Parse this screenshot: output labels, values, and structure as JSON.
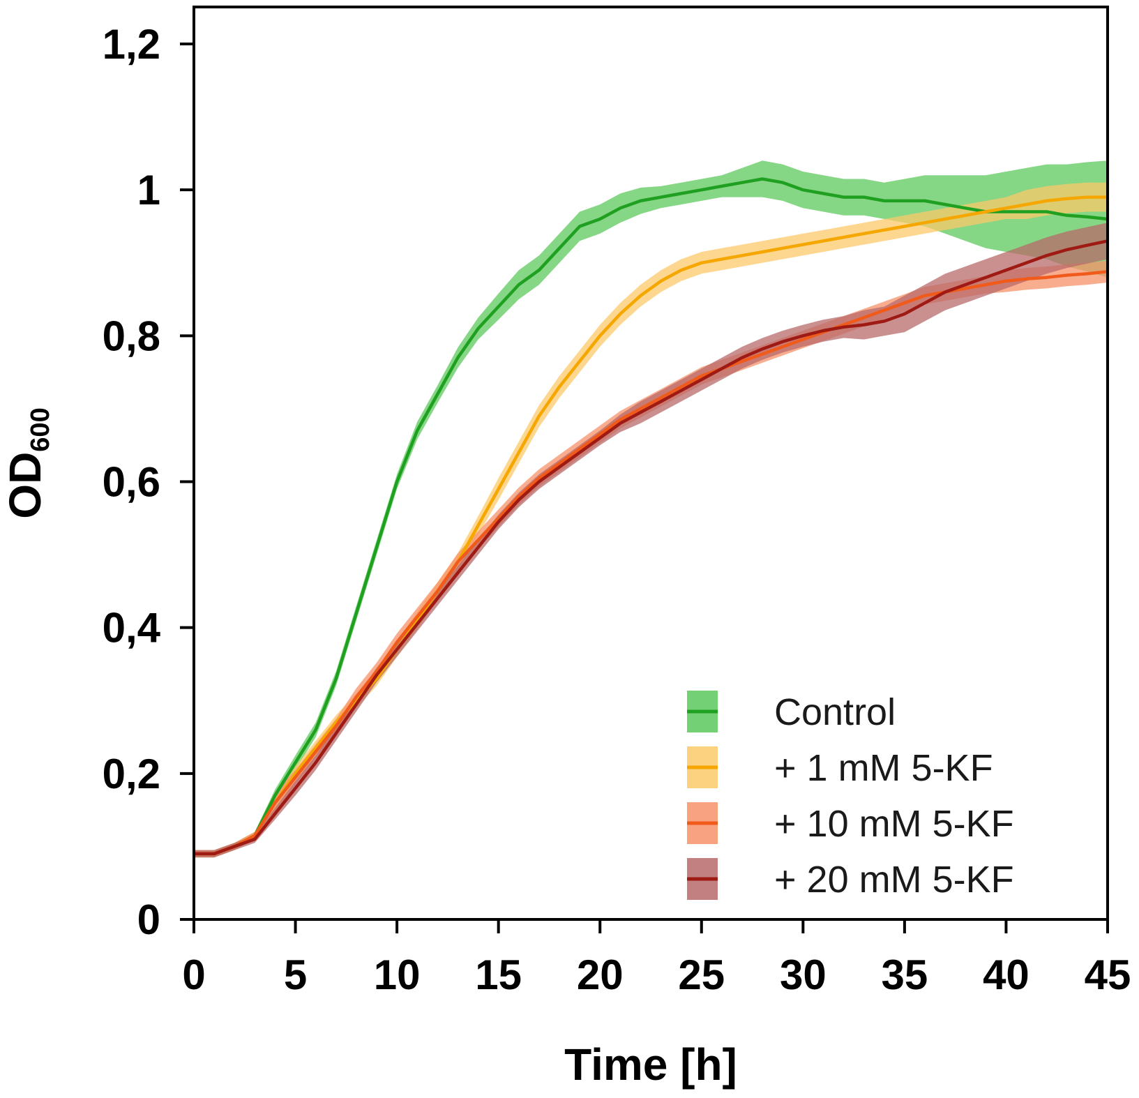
{
  "chart_data": {
    "type": "line",
    "title": "",
    "xlabel": "Time [h]",
    "ylabel": {
      "main": "OD",
      "subscript": "600"
    },
    "xlim": [
      0,
      45
    ],
    "ylim": [
      0,
      1.2
    ],
    "xticks": [
      0,
      5,
      10,
      15,
      20,
      25,
      30,
      35,
      40,
      45
    ],
    "xtick_labels": [
      "0",
      "5",
      "10",
      "15",
      "20",
      "25",
      "30",
      "35",
      "40",
      "45"
    ],
    "yticks": [
      0,
      0.2,
      0.4,
      0.6,
      0.8,
      1.0,
      1.2
    ],
    "ytick_labels": [
      "0",
      "0,2",
      "0,4",
      "0,6",
      "0,8",
      "1",
      "1,2"
    ],
    "grid": false,
    "legend_position": "bottom-right",
    "x": [
      0,
      1,
      2,
      3,
      4,
      5,
      6,
      7,
      8,
      9,
      10,
      11,
      12,
      13,
      14,
      15,
      16,
      17,
      18,
      19,
      20,
      21,
      22,
      23,
      24,
      25,
      26,
      27,
      28,
      29,
      30,
      31,
      32,
      33,
      34,
      35,
      36,
      37,
      38,
      39,
      40,
      41,
      42,
      43,
      44,
      45
    ],
    "series": [
      {
        "name": "Control",
        "line_color": "#20a020",
        "band_color": "#5cc85c",
        "values": [
          0.09,
          0.09,
          0.1,
          0.115,
          0.17,
          0.215,
          0.26,
          0.33,
          0.42,
          0.51,
          0.6,
          0.67,
          0.72,
          0.77,
          0.81,
          0.84,
          0.87,
          0.89,
          0.92,
          0.95,
          0.96,
          0.975,
          0.985,
          0.99,
          0.995,
          1.0,
          1.005,
          1.01,
          1.015,
          1.01,
          1.0,
          0.995,
          0.99,
          0.99,
          0.985,
          0.985,
          0.985,
          0.98,
          0.975,
          0.97,
          0.97,
          0.97,
          0.97,
          0.965,
          0.963,
          0.96
        ],
        "band": [
          0.005,
          0.005,
          0.005,
          0.005,
          0.008,
          0.01,
          0.01,
          0.01,
          0.01,
          0.01,
          0.01,
          0.012,
          0.012,
          0.014,
          0.015,
          0.018,
          0.02,
          0.02,
          0.02,
          0.02,
          0.02,
          0.02,
          0.018,
          0.015,
          0.015,
          0.015,
          0.015,
          0.02,
          0.025,
          0.025,
          0.025,
          0.025,
          0.025,
          0.025,
          0.025,
          0.03,
          0.035,
          0.04,
          0.045,
          0.05,
          0.055,
          0.06,
          0.065,
          0.07,
          0.075,
          0.08
        ]
      },
      {
        "name": "+ 1 mM 5-KF",
        "line_color": "#f5a700",
        "band_color": "#fcc96a",
        "values": [
          0.09,
          0.09,
          0.1,
          0.115,
          0.16,
          0.2,
          0.235,
          0.27,
          0.3,
          0.33,
          0.37,
          0.41,
          0.45,
          0.49,
          0.54,
          0.59,
          0.64,
          0.69,
          0.73,
          0.765,
          0.8,
          0.83,
          0.855,
          0.875,
          0.89,
          0.9,
          0.905,
          0.91,
          0.915,
          0.92,
          0.925,
          0.93,
          0.935,
          0.94,
          0.945,
          0.95,
          0.955,
          0.96,
          0.965,
          0.97,
          0.975,
          0.98,
          0.985,
          0.988,
          0.99,
          0.99
        ],
        "band": [
          0.005,
          0.005,
          0.005,
          0.005,
          0.008,
          0.01,
          0.01,
          0.01,
          0.01,
          0.01,
          0.01,
          0.012,
          0.012,
          0.012,
          0.013,
          0.015,
          0.015,
          0.015,
          0.015,
          0.015,
          0.015,
          0.015,
          0.015,
          0.015,
          0.015,
          0.015,
          0.015,
          0.015,
          0.015,
          0.015,
          0.015,
          0.015,
          0.015,
          0.015,
          0.015,
          0.015,
          0.015,
          0.015,
          0.015,
          0.015,
          0.015,
          0.02,
          0.02,
          0.02,
          0.02,
          0.02
        ]
      },
      {
        "name": "+ 10 mM 5-KF",
        "line_color": "#f05a1a",
        "band_color": "#f7926a",
        "values": [
          0.09,
          0.09,
          0.1,
          0.115,
          0.16,
          0.195,
          0.23,
          0.265,
          0.305,
          0.34,
          0.38,
          0.415,
          0.45,
          0.49,
          0.52,
          0.55,
          0.58,
          0.605,
          0.625,
          0.645,
          0.665,
          0.685,
          0.7,
          0.715,
          0.73,
          0.745,
          0.755,
          0.765,
          0.775,
          0.785,
          0.795,
          0.805,
          0.815,
          0.825,
          0.835,
          0.845,
          0.855,
          0.86,
          0.865,
          0.87,
          0.875,
          0.878,
          0.88,
          0.883,
          0.885,
          0.888
        ],
        "band": [
          0.005,
          0.005,
          0.005,
          0.005,
          0.015,
          0.01,
          0.01,
          0.01,
          0.012,
          0.012,
          0.012,
          0.012,
          0.012,
          0.012,
          0.012,
          0.012,
          0.012,
          0.012,
          0.012,
          0.012,
          0.012,
          0.012,
          0.012,
          0.012,
          0.012,
          0.012,
          0.012,
          0.012,
          0.012,
          0.012,
          0.012,
          0.012,
          0.012,
          0.012,
          0.012,
          0.012,
          0.012,
          0.012,
          0.012,
          0.012,
          0.015,
          0.015,
          0.015,
          0.015,
          0.015,
          0.015
        ]
      },
      {
        "name": "+ 20 mM 5-KF",
        "line_color": "#a01a14",
        "band_color": "#b86a6a",
        "values": [
          0.09,
          0.09,
          0.1,
          0.11,
          0.145,
          0.18,
          0.215,
          0.255,
          0.295,
          0.335,
          0.37,
          0.405,
          0.44,
          0.475,
          0.51,
          0.545,
          0.575,
          0.6,
          0.62,
          0.64,
          0.66,
          0.68,
          0.695,
          0.71,
          0.725,
          0.74,
          0.755,
          0.77,
          0.782,
          0.792,
          0.8,
          0.807,
          0.812,
          0.815,
          0.82,
          0.83,
          0.845,
          0.86,
          0.87,
          0.88,
          0.89,
          0.9,
          0.91,
          0.918,
          0.924,
          0.93
        ],
        "band": [
          0.005,
          0.005,
          0.005,
          0.005,
          0.008,
          0.01,
          0.01,
          0.01,
          0.01,
          0.01,
          0.01,
          0.01,
          0.01,
          0.01,
          0.01,
          0.01,
          0.01,
          0.01,
          0.01,
          0.01,
          0.01,
          0.012,
          0.015,
          0.015,
          0.015,
          0.015,
          0.015,
          0.015,
          0.015,
          0.015,
          0.015,
          0.015,
          0.015,
          0.02,
          0.02,
          0.025,
          0.025,
          0.025,
          0.025,
          0.025,
          0.025,
          0.025,
          0.025,
          0.025,
          0.025,
          0.025
        ]
      }
    ]
  }
}
